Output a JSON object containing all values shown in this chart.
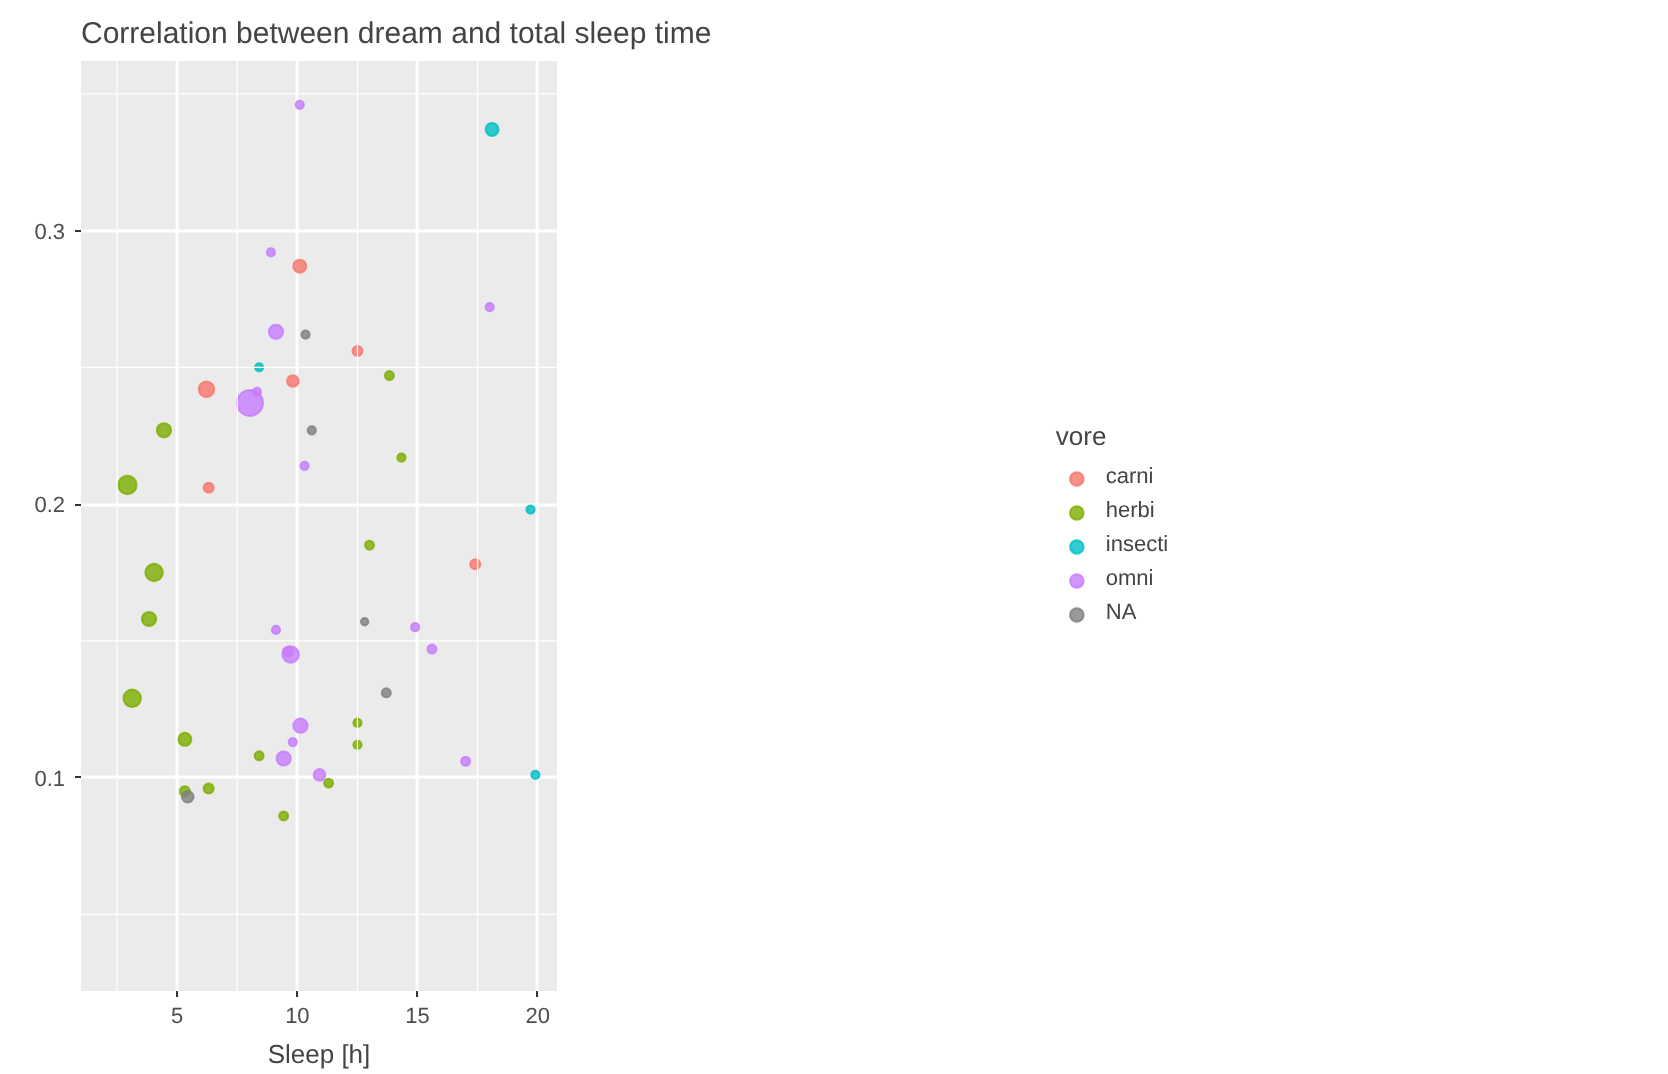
{
  "chart_data": {
    "type": "bubble",
    "title": "Correlation between dream and total sleep time",
    "xlabel": "Sleep [h]",
    "legend_title": "vore",
    "xlim": [
      1.0,
      20.8
    ],
    "ylim": [
      0.022,
      0.362
    ],
    "xticks": [
      5,
      10,
      15,
      20
    ],
    "yticks": [
      0.1,
      0.2,
      0.3
    ],
    "grid": true,
    "legend": "right",
    "series": [
      {
        "name": "carni",
        "color": "#f8766d",
        "x": [
          6.22,
          6.31,
          9.81,
          10.1,
          12.5,
          17.4
        ],
        "values": [
          0.242,
          0.206,
          0.245,
          0.287,
          0.256,
          0.178
        ],
        "sizes": [
          0.35,
          0.15,
          0.2,
          0.25,
          0.15,
          0.15
        ]
      },
      {
        "name": "herbi",
        "color": "#7cae00",
        "x": [
          2.93,
          4.45,
          4.04,
          3.83,
          3.13,
          5.32,
          5.32,
          6.31,
          8.41,
          9.43,
          11.3,
          13.83,
          14.33,
          13.0,
          12.5,
          12.5
        ],
        "values": [
          0.207,
          0.227,
          0.175,
          0.158,
          0.129,
          0.114,
          0.095,
          0.096,
          0.108,
          0.086,
          0.098,
          0.247,
          0.217,
          0.185,
          0.12,
          0.112
        ],
        "sizes": [
          0.5,
          0.3,
          0.45,
          0.3,
          0.45,
          0.25,
          0.15,
          0.15,
          0.12,
          0.12,
          0.12,
          0.12,
          0.1,
          0.12,
          0.1,
          0.1
        ]
      },
      {
        "name": "insecti",
        "color": "#00bfc4",
        "x": [
          8.41,
          18.1,
          19.7,
          19.9
        ],
        "values": [
          0.25,
          0.337,
          0.198,
          0.101
        ],
        "sizes": [
          0.1,
          0.25,
          0.1,
          0.1
        ]
      },
      {
        "name": "omni",
        "color": "#c77cff",
        "x": [
          10.1,
          8.9,
          9.11,
          8.03,
          8.32,
          10.3,
          9.11,
          9.61,
          9.72,
          10.13,
          9.81,
          9.43,
          10.92,
          14.9,
          15.6,
          17.0,
          18.0
        ],
        "values": [
          0.346,
          0.292,
          0.263,
          0.237,
          0.241,
          0.214,
          0.154,
          0.146,
          0.145,
          0.119,
          0.113,
          0.107,
          0.101,
          0.155,
          0.147,
          0.106,
          0.272
        ],
        "sizes": [
          0.1,
          0.1,
          0.3,
          1,
          0.1,
          0.1,
          0.1,
          0.15,
          0.4,
          0.3,
          0.1,
          0.3,
          0.2,
          0.1,
          0.12,
          0.12,
          0.1
        ]
      },
      {
        "name": "NA",
        "color": "#7f7f7f",
        "x": [
          10.34,
          10.6,
          5.44,
          12.8,
          13.7
        ],
        "values": [
          0.262,
          0.227,
          0.093,
          0.157,
          0.131
        ],
        "sizes": [
          0.1,
          0.1,
          0.2,
          0.08,
          0.12
        ]
      }
    ]
  }
}
